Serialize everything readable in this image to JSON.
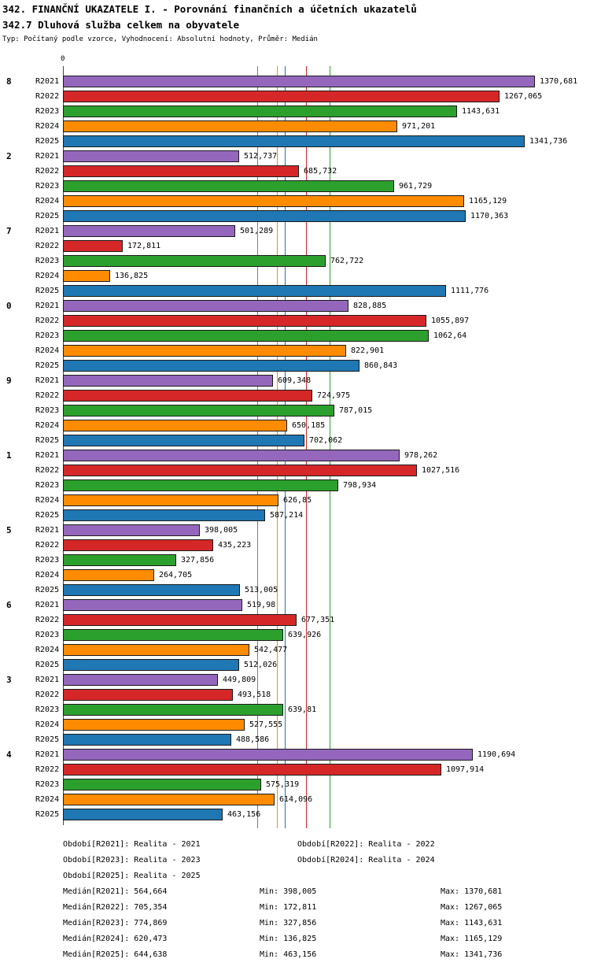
{
  "header": {
    "title": "342. FINANČNÍ UKAZATELE I. - Porovnání finančních a účetních ukazatelů",
    "subtitle": "342.7 Dluhová služba celkem na obyvatele",
    "meta": "Typ: Počítaný podle vzorce, Vyhodnocení: Absolutní hodnoty, Průměr: Medián"
  },
  "chart_data": {
    "type": "bar",
    "orientation": "horizontal",
    "x_axis": {
      "origin_label": "0",
      "min": 0,
      "max": 1370.681
    },
    "legend_position": "bottom",
    "series": [
      "R2021",
      "R2022",
      "R2023",
      "R2024",
      "R2025"
    ],
    "series_colors": {
      "R2021": "#9467bd",
      "R2022": "#d62728",
      "R2023": "#2ca02c",
      "R2024": "#ff8c00",
      "R2025": "#1f77b4"
    },
    "groups": [
      {
        "label": "8",
        "values": [
          1370.681,
          1267.065,
          1143.631,
          971.201,
          1341.736
        ],
        "displays": [
          "1370,681",
          "1267,065",
          "1143,631",
          "971,201",
          "1341,736"
        ]
      },
      {
        "label": "2",
        "values": [
          512.737,
          685.732,
          961.729,
          1165.129,
          1170.363
        ],
        "displays": [
          "512,737",
          "685,732",
          "961,729",
          "1165,129",
          "1170,363"
        ]
      },
      {
        "label": "7",
        "values": [
          501.289,
          172.811,
          762.722,
          136.825,
          1111.776
        ],
        "displays": [
          "501,289",
          "172,811",
          "762,722",
          "136,825",
          "1111,776"
        ]
      },
      {
        "label": "0",
        "values": [
          828.885,
          1055.897,
          1062.64,
          822.901,
          860.843
        ],
        "displays": [
          "828,885",
          "1055,897",
          "1062,64",
          "822,901",
          "860,843"
        ]
      },
      {
        "label": "9",
        "values": [
          609.348,
          724.975,
          787.015,
          650.185,
          702.062
        ],
        "displays": [
          "609,348",
          "724,975",
          "787,015",
          "650,185",
          "702,062"
        ]
      },
      {
        "label": "1",
        "values": [
          978.262,
          1027.516,
          798.934,
          626.85,
          587.214
        ],
        "displays": [
          "978,262",
          "1027,516",
          "798,934",
          "626,85",
          "587,214"
        ]
      },
      {
        "label": "5",
        "values": [
          398.005,
          435.223,
          327.856,
          264.705,
          513.005
        ],
        "displays": [
          "398,005",
          "435,223",
          "327,856",
          "264,705",
          "513,005"
        ]
      },
      {
        "label": "6",
        "values": [
          519.98,
          677.351,
          639.926,
          542.477,
          512.026
        ],
        "displays": [
          "519,98",
          "677,351",
          "639,926",
          "542,477",
          "512,026"
        ]
      },
      {
        "label": "3",
        "values": [
          449.809,
          493.518,
          639.81,
          527.555,
          488.586
        ],
        "displays": [
          "449,809",
          "493,518",
          "639,81",
          "527,555",
          "488,586"
        ]
      },
      {
        "label": "4",
        "values": [
          1190.694,
          1097.914,
          575.319,
          614.096,
          463.156
        ],
        "displays": [
          "1190,694",
          "1097,914",
          "575,319",
          "614,096",
          "463,156"
        ]
      }
    ],
    "median_lines": [
      {
        "series": "R2021",
        "value": 564.664
      },
      {
        "series": "R2022",
        "value": 705.354
      },
      {
        "series": "R2023",
        "value": 774.869
      },
      {
        "series": "R2024",
        "value": 620.473
      },
      {
        "series": "R2025",
        "value": 644.638
      }
    ]
  },
  "footer": {
    "periods": [
      {
        "text": "Období[R2021]: Realita - 2021",
        "row": 0,
        "col": 0
      },
      {
        "text": "Období[R2022]: Realita - 2022",
        "row": 0,
        "col": 1
      },
      {
        "text": "Období[R2023]: Realita - 2023",
        "row": 1,
        "col": 0
      },
      {
        "text": "Období[R2024]: Realita - 2024",
        "row": 1,
        "col": 1
      },
      {
        "text": "Období[R2025]: Realita - 2025",
        "row": 2,
        "col": 0
      }
    ],
    "stats": [
      {
        "median": "Medián[R2021]: 564,664",
        "min": "Min: 398,005",
        "max": "Max: 1370,681"
      },
      {
        "median": "Medián[R2022]: 705,354",
        "min": "Min: 172,811",
        "max": "Max: 1267,065"
      },
      {
        "median": "Medián[R2023]: 774,869",
        "min": "Min: 327,856",
        "max": "Max: 1143,631"
      },
      {
        "median": "Medián[R2024]: 620,473",
        "min": "Min: 136,825",
        "max": "Max: 1165,129"
      },
      {
        "median": "Medián[R2025]: 644,638",
        "min": "Min: 463,156",
        "max": "Max: 1341,736"
      }
    ]
  }
}
